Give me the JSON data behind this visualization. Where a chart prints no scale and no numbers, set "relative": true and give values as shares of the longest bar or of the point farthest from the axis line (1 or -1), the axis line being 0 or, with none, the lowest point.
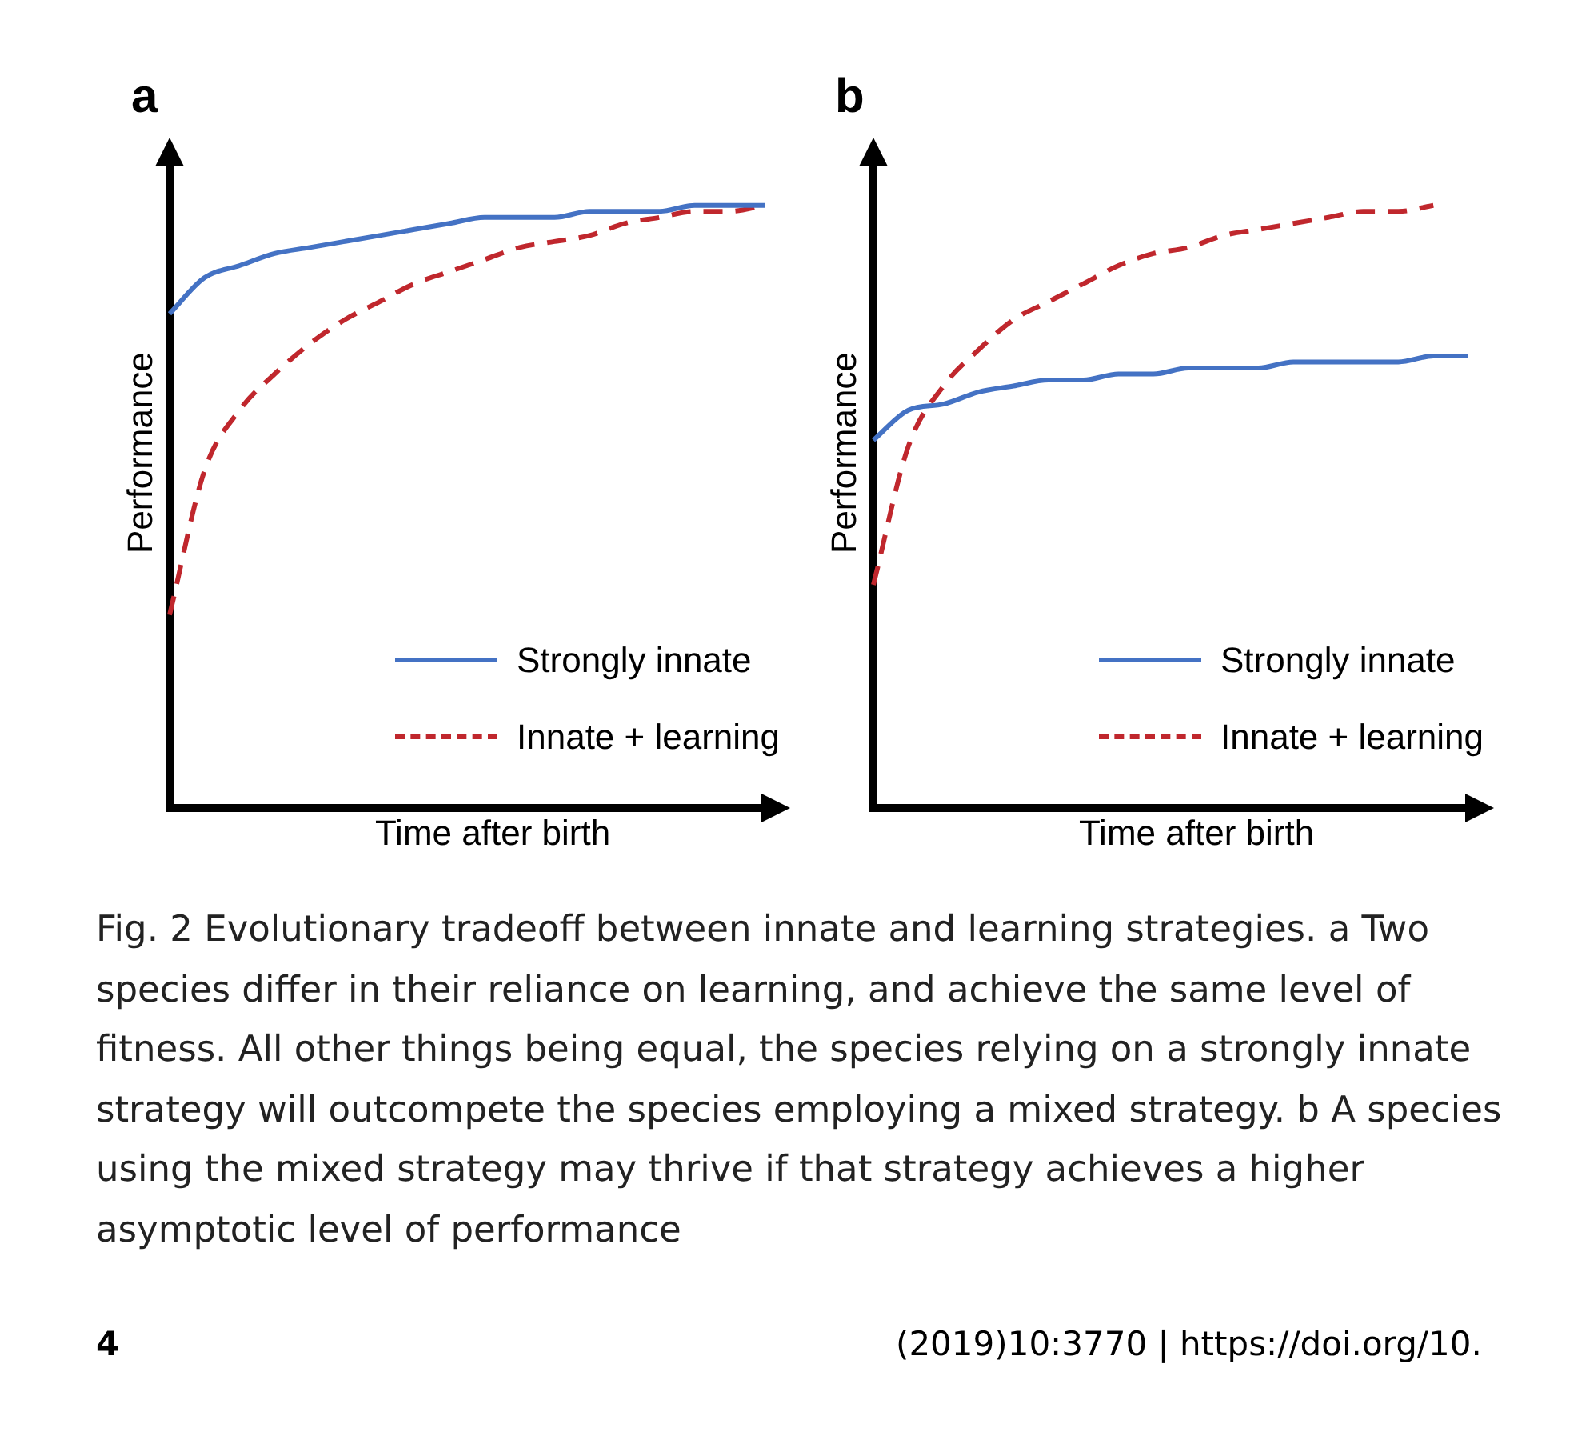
{
  "chart_data": [
    {
      "type": "line",
      "title": "a",
      "xlabel": "Time after birth",
      "ylabel": "Performance",
      "relative": true,
      "marker": "none",
      "grid": false,
      "legend": "bottom right",
      "categories": [
        null,
        null,
        null,
        null,
        null,
        null,
        null,
        null,
        null,
        null,
        null,
        null,
        null,
        null,
        null,
        null,
        null,
        null
      ],
      "series": [
        {
          "name": "Strongly innate",
          "color": "#4472c4",
          "line_style": "solid",
          "values": [
            0.82,
            0.88,
            0.9,
            0.92,
            0.93,
            0.94,
            0.95,
            0.96,
            0.97,
            0.98,
            0.98,
            0.98,
            0.99,
            0.99,
            0.99,
            1.0,
            1.0,
            1.0
          ]
        },
        {
          "name": "Innate + learning",
          "color": "#c0272d",
          "line_style": "dashed",
          "values": [
            0.32,
            0.56,
            0.66,
            0.72,
            0.77,
            0.81,
            0.84,
            0.87,
            0.89,
            0.91,
            0.93,
            0.94,
            0.95,
            0.97,
            0.98,
            0.99,
            0.99,
            1.0
          ]
        }
      ],
      "annotations": [
        "Fig. 2 Evolutionary tradeoff between innate and learning strategies. a Two species differ in their reliance on learning, and achieve the same level of fitness. All other things being equal, the species relying on a strongly innate strategy will outcompete the species employing a mixed strategy. b A species using the mixed strategy may thrive if that strategy achieves a higher asymptotic level of performance",
        "4",
        "(2019)10:3770 | https://doi.org/10."
      ]
    },
    {
      "type": "line",
      "title": "b",
      "xlabel": "Time after birth",
      "ylabel": "Performance",
      "relative": true,
      "marker": "none",
      "grid": false,
      "legend": "bottom right",
      "categories": [
        null,
        null,
        null,
        null,
        null,
        null,
        null,
        null,
        null,
        null,
        null,
        null,
        null,
        null,
        null,
        null,
        null,
        null
      ],
      "series": [
        {
          "name": "Strongly innate",
          "color": "#4472c4",
          "line_style": "solid",
          "values": [
            0.61,
            0.66,
            0.67,
            0.69,
            0.7,
            0.71,
            0.71,
            0.72,
            0.72,
            0.73,
            0.73,
            0.73,
            0.74,
            0.74,
            0.74,
            0.74,
            0.75,
            0.75
          ]
        },
        {
          "name": "Innate + learning",
          "color": "#c0272d",
          "line_style": "dashed",
          "values": [
            0.37,
            0.6,
            0.7,
            0.76,
            0.81,
            0.84,
            0.87,
            0.9,
            0.92,
            0.93,
            0.95,
            0.96,
            0.97,
            0.98,
            0.99,
            0.99,
            1.0,
            null
          ]
        }
      ]
    }
  ]
}
